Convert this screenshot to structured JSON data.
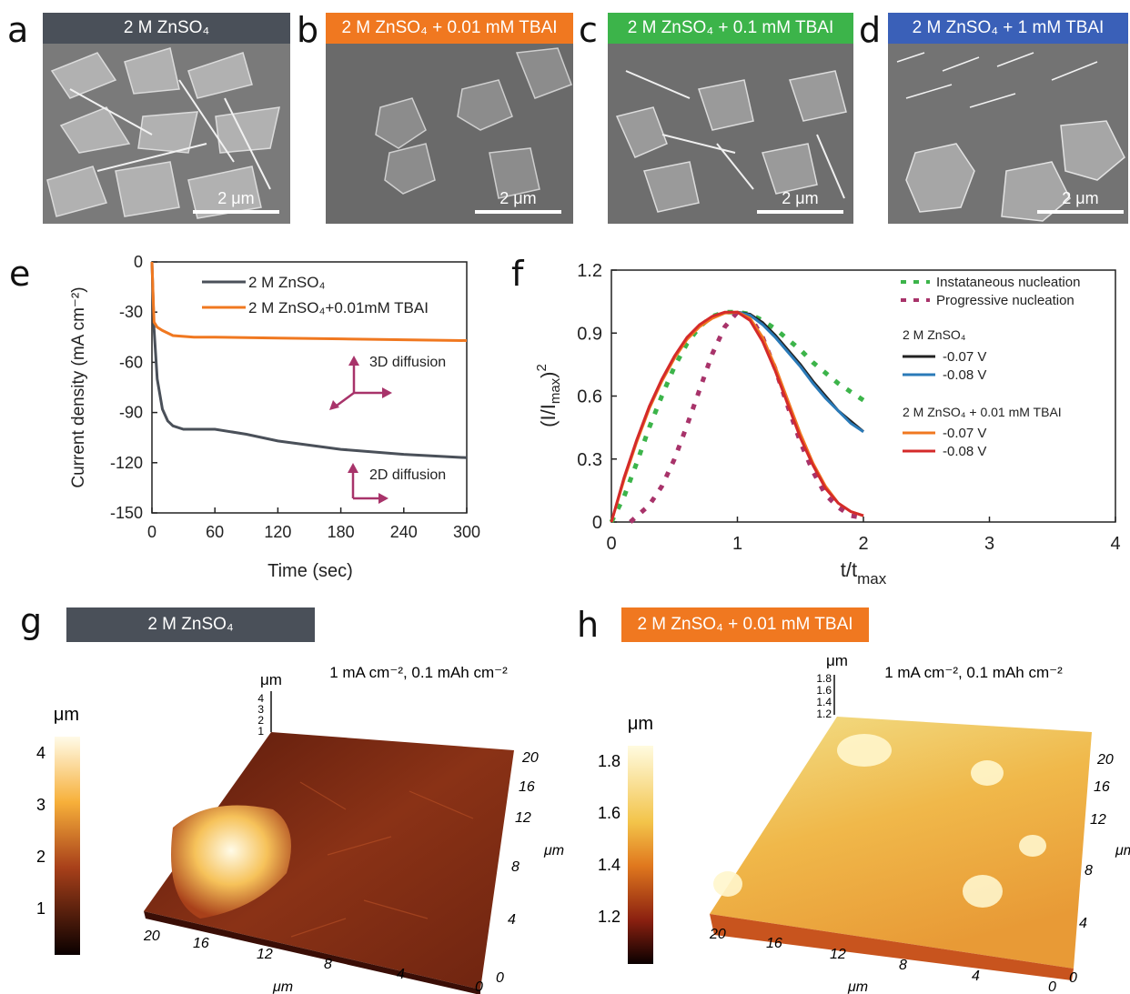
{
  "panels": {
    "a": {
      "letter": "a",
      "label": "2 M ZnSO₄",
      "color": "#4a5059",
      "scale": "2 μm"
    },
    "b": {
      "letter": "b",
      "label": "2 M ZnSO₄ + 0.01 mM TBAI",
      "color": "#f07820",
      "scale": "2 μm"
    },
    "c": {
      "letter": "c",
      "label": "2 M ZnSO₄ + 0.1 mM TBAI",
      "color": "#3cb44a",
      "scale": "2 μm"
    },
    "d": {
      "letter": "d",
      "label": "2 M ZnSO₄ + 1 mM TBAI",
      "color": "#3a60b8",
      "scale": "2 μm"
    },
    "e": {
      "letter": "e"
    },
    "f": {
      "letter": "f"
    },
    "g": {
      "letter": "g",
      "label": "2 M ZnSO₄",
      "color": "#4a5059",
      "condition": "1 mA cm⁻², 0.1 mAh cm⁻²",
      "unit": "μm",
      "colorbar_ticks": [
        "4",
        "3",
        "2",
        "1"
      ],
      "z_ticks": [
        "4",
        "3",
        "2",
        "1"
      ],
      "x_ticks": [
        "20",
        "16",
        "12",
        "8",
        "4",
        "0"
      ],
      "y_ticks": [
        "0",
        "4",
        "8",
        "12",
        "16",
        "20"
      ],
      "axis_unit": "μm"
    },
    "h": {
      "letter": "h",
      "label": "2 M ZnSO₄ + 0.01 mM TBAI",
      "color": "#f07820",
      "condition": "1 mA cm⁻², 0.1 mAh cm⁻²",
      "unit": "μm",
      "colorbar_ticks": [
        "1.8",
        "1.6",
        "1.4",
        "1.2"
      ],
      "z_ticks": [
        "1.8",
        "1.6",
        "1.4",
        "1.2"
      ],
      "x_ticks": [
        "20",
        "16",
        "12",
        "8",
        "4",
        "0"
      ],
      "y_ticks": [
        "0",
        "4",
        "8",
        "12",
        "16",
        "20"
      ],
      "axis_unit": "μm"
    }
  },
  "chart_data": [
    {
      "type": "line",
      "panel": "e",
      "xlabel": "Time (sec)",
      "ylabel": "Current density (mA cm⁻²)",
      "xlim": [
        0,
        300
      ],
      "ylim": [
        -150,
        0
      ],
      "x_ticks": [
        "0",
        "60",
        "120",
        "180",
        "240",
        "300"
      ],
      "y_ticks": [
        "0",
        "-30",
        "-60",
        "-90",
        "-120",
        "-150"
      ],
      "annotations": [
        "3D diffusion",
        "2D diffusion"
      ],
      "series": [
        {
          "name": "2 M ZnSO₄",
          "color": "#4a5059",
          "x": [
            0,
            2,
            5,
            10,
            15,
            20,
            30,
            45,
            60,
            90,
            120,
            180,
            240,
            300
          ],
          "y": [
            0,
            -40,
            -70,
            -88,
            -95,
            -98,
            -100,
            -100,
            -100,
            -103,
            -107,
            -112,
            -115,
            -117
          ]
        },
        {
          "name": "2 M ZnSO₄+0.01mM TBAI",
          "color": "#f07820",
          "x": [
            0,
            2,
            5,
            10,
            20,
            40,
            60,
            120,
            180,
            240,
            300
          ],
          "y": [
            0,
            -36,
            -39,
            -41,
            -44,
            -45,
            -45,
            -45.5,
            -46,
            -46.5,
            -47
          ]
        }
      ]
    },
    {
      "type": "line",
      "panel": "f",
      "xlabel": "t/t_max",
      "ylabel": "(I/I_max)²",
      "xlim": [
        0,
        4
      ],
      "ylim": [
        0,
        1.2
      ],
      "x_ticks": [
        "0",
        "1",
        "2",
        "3",
        "4"
      ],
      "y_ticks": [
        "0",
        "0.3",
        "0.6",
        "0.9",
        "1.2"
      ],
      "legend_groups": [
        "2 M ZnSO₄",
        "2 M ZnSO₄ + 0.01 mM TBAI"
      ],
      "series": [
        {
          "name": "Instataneous nucleation",
          "color": "#3cb44a",
          "dashed": true,
          "x": [
            0,
            0.1,
            0.2,
            0.3,
            0.4,
            0.5,
            0.6,
            0.7,
            0.8,
            0.9,
            1.0,
            1.1,
            1.2,
            1.3,
            1.4,
            1.5,
            1.6,
            1.7,
            1.8,
            1.9,
            2.0
          ],
          "y": [
            0,
            0.12,
            0.28,
            0.45,
            0.6,
            0.74,
            0.85,
            0.93,
            0.98,
            1.0,
            1.0,
            0.99,
            0.96,
            0.92,
            0.87,
            0.82,
            0.76,
            0.71,
            0.66,
            0.62,
            0.58
          ]
        },
        {
          "name": "Progressive nucleation",
          "color": "#a8336a",
          "dashed": true,
          "x": [
            0.15,
            0.3,
            0.4,
            0.5,
            0.6,
            0.7,
            0.8,
            0.9,
            1.0,
            1.1,
            1.2,
            1.3,
            1.4,
            1.5,
            1.6,
            1.7,
            1.8,
            1.9,
            2.0
          ],
          "y": [
            0,
            0.08,
            0.17,
            0.3,
            0.46,
            0.63,
            0.8,
            0.93,
            1.0,
            0.98,
            0.88,
            0.73,
            0.55,
            0.38,
            0.24,
            0.13,
            0.07,
            0.03,
            0.02
          ]
        },
        {
          "name": "-0.07 V",
          "group": "2 M ZnSO₄",
          "color": "#222222",
          "x": [
            1.0,
            1.1,
            1.2,
            1.3,
            1.4,
            1.5,
            1.6,
            1.7,
            1.8,
            1.9,
            2.0
          ],
          "y": [
            1.0,
            0.99,
            0.95,
            0.89,
            0.82,
            0.75,
            0.67,
            0.6,
            0.53,
            0.48,
            0.43
          ]
        },
        {
          "name": "-0.08 V",
          "group": "2 M ZnSO₄",
          "color": "#2a7ab8",
          "x": [
            1.0,
            1.1,
            1.2,
            1.3,
            1.4,
            1.5,
            1.6,
            1.7,
            1.8,
            1.9,
            2.0
          ],
          "y": [
            1.0,
            0.985,
            0.94,
            0.88,
            0.81,
            0.74,
            0.66,
            0.59,
            0.53,
            0.47,
            0.43
          ]
        },
        {
          "name": "-0.07 V",
          "group": "2 M ZnSO₄ + 0.01 mM TBAI",
          "color": "#f07820",
          "x": [
            0,
            0.1,
            0.2,
            0.3,
            0.4,
            0.5,
            0.6,
            0.7,
            0.8,
            0.9,
            1.0,
            1.1,
            1.2,
            1.3,
            1.4,
            1.5,
            1.6,
            1.7,
            1.8,
            1.9,
            2.0
          ],
          "y": [
            0,
            0.2,
            0.38,
            0.54,
            0.67,
            0.78,
            0.87,
            0.93,
            0.97,
            0.995,
            1.0,
            0.97,
            0.88,
            0.74,
            0.58,
            0.42,
            0.28,
            0.17,
            0.09,
            0.05,
            0.03
          ]
        },
        {
          "name": "-0.08 V",
          "group": "2 M ZnSO₄ + 0.01 mM TBAI",
          "color": "#d42a2a",
          "x": [
            0,
            0.1,
            0.2,
            0.3,
            0.4,
            0.5,
            0.6,
            0.7,
            0.8,
            0.9,
            1.0,
            1.1,
            1.2,
            1.3,
            1.4,
            1.5,
            1.6,
            1.7,
            1.8,
            1.9,
            2.0
          ],
          "y": [
            0,
            0.21,
            0.39,
            0.55,
            0.68,
            0.79,
            0.88,
            0.94,
            0.98,
            1.0,
            1.0,
            0.96,
            0.86,
            0.72,
            0.56,
            0.4,
            0.27,
            0.16,
            0.09,
            0.05,
            0.03
          ]
        }
      ]
    }
  ]
}
